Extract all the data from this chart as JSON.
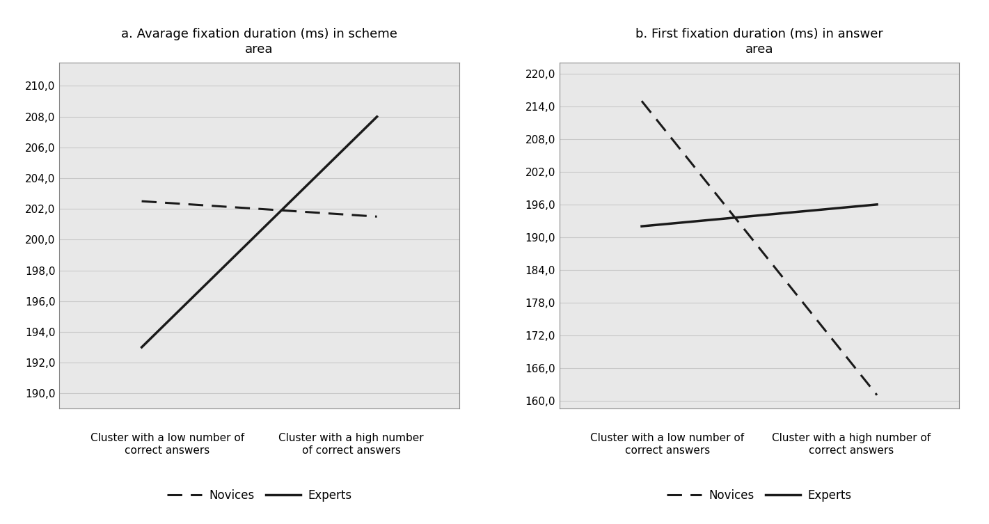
{
  "chart_a": {
    "title": "a. Avarage fixation duration (ms) in scheme\narea",
    "novices": [
      202.5,
      201.5
    ],
    "experts": [
      193.0,
      208.0
    ],
    "yticks": [
      190.0,
      192.0,
      194.0,
      196.0,
      198.0,
      200.0,
      202.0,
      204.0,
      206.0,
      208.0,
      210.0
    ],
    "ymin": 189.0,
    "ymax": 211.5,
    "xtick0": "Cluster with a low number of\ncorrect answers",
    "xtick1": "Cluster with a high number\nof correct answers"
  },
  "chart_b": {
    "title": "b. First fixation duration (ms) in answer\narea",
    "novices": [
      215.0,
      161.0
    ],
    "experts": [
      192.0,
      196.0
    ],
    "yticks": [
      160.0,
      166.0,
      172.0,
      178.0,
      184.0,
      190.0,
      196.0,
      202.0,
      208.0,
      214.0,
      220.0
    ],
    "ymin": 158.5,
    "ymax": 222.0,
    "xtick0": "Cluster with a low number of\ncorrect answers",
    "xtick1": "Cluster with a high number of\ncorrect answers"
  },
  "line_color": "#1a1a1a",
  "novices_linewidth": 2.2,
  "experts_linewidth": 2.5,
  "legend_novices": "Novices",
  "legend_experts": "Experts",
  "bg_color": "#e8e8e8",
  "grid_color": "#c8c8c8",
  "border_color": "#888888",
  "title_fontsize": 13,
  "tick_fontsize": 11,
  "xtick_fontsize": 11,
  "legend_fontsize": 12
}
